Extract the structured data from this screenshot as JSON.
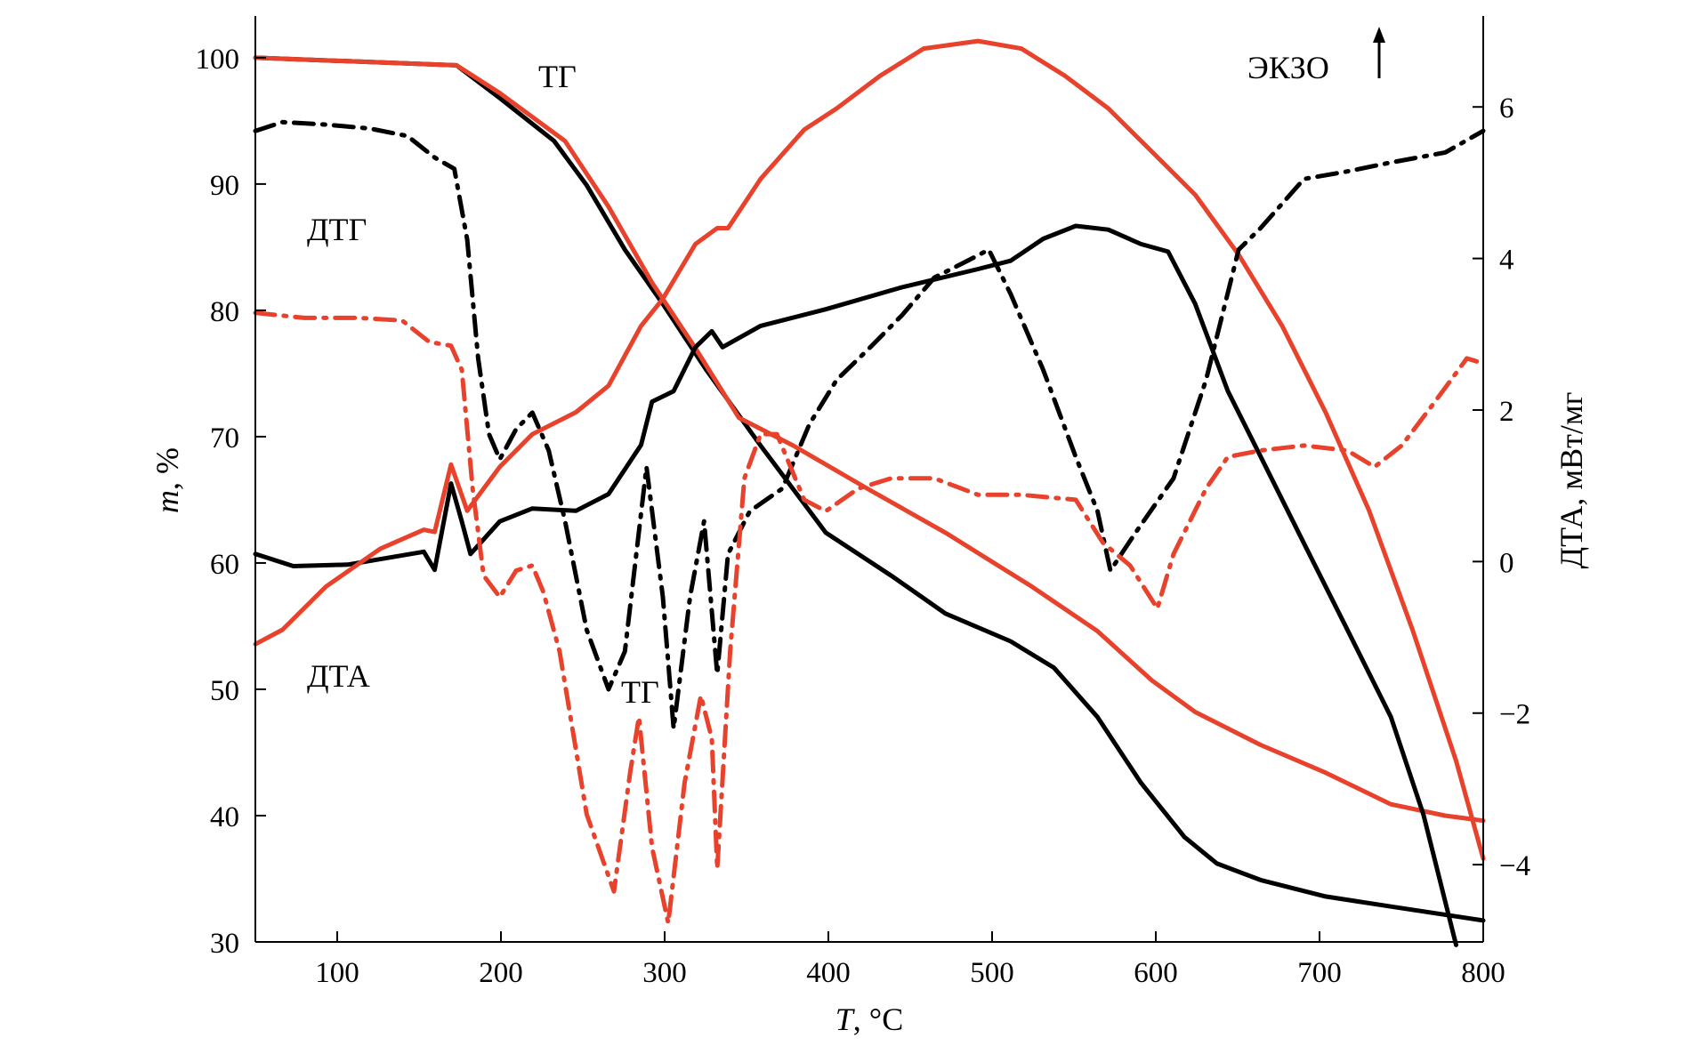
{
  "chart_data": {
    "type": "line",
    "title": "",
    "xlabel": "T, °C",
    "xlabel_var": "T",
    "xlabel_unit": ", °C",
    "ylabel": "m, %",
    "ylabel_var": "m",
    "ylabel_unit": ", %",
    "y2label": "ДТА, мВт/мг",
    "xlim": [
      50,
      800
    ],
    "ylim": [
      30,
      103.3
    ],
    "y2lim": [
      -5.02,
      7.2
    ],
    "grid": false,
    "xticks": [
      "100",
      "200",
      "300",
      "400",
      "500",
      "600",
      "700",
      "800"
    ],
    "xtick_values": [
      100,
      200,
      300,
      400,
      500,
      600,
      700,
      800
    ],
    "yticks": [
      "30",
      "40",
      "50",
      "60",
      "70",
      "80",
      "90",
      "100"
    ],
    "ytick_values": [
      30,
      40,
      50,
      60,
      70,
      80,
      90,
      100
    ],
    "y2ticks": [
      "−4",
      "−2",
      "0",
      "2",
      "4",
      "6"
    ],
    "y2tick_values": [
      -4,
      -2,
      0,
      2,
      4,
      6
    ],
    "annotations": [
      {
        "text": "ТГ",
        "near": "top-center"
      },
      {
        "text": "ДТГ",
        "near": "upper-left"
      },
      {
        "text": "ДТА",
        "near": "lower-left"
      },
      {
        "text": "ТГ",
        "near": "lower-center"
      },
      {
        "text": "ЭКЗО",
        "near": "top-right",
        "arrow": "up"
      }
    ],
    "series": [
      {
        "name": "ТГ (black)",
        "axis": "left",
        "color": "#000000",
        "style": "solid",
        "points": [
          [
            50,
            100
          ],
          [
            172.8,
            99.4
          ],
          [
            199.3,
            96.8
          ],
          [
            232.5,
            93.4
          ],
          [
            252.4,
            89.9
          ],
          [
            275.7,
            84.8
          ],
          [
            298.9,
            80.5
          ],
          [
            325.4,
            75.3
          ],
          [
            358.6,
            69.3
          ],
          [
            398.4,
            62.4
          ],
          [
            438.3,
            59.0
          ],
          [
            471.5,
            56.0
          ],
          [
            511.3,
            53.8
          ],
          [
            537.8,
            51.7
          ],
          [
            564.4,
            47.8
          ],
          [
            590.9,
            42.6
          ],
          [
            617.5,
            38.3
          ],
          [
            637.4,
            36.2
          ],
          [
            664,
            34.9
          ],
          [
            703.7,
            33.6
          ],
          [
            743.6,
            32.8
          ],
          [
            800,
            31.7
          ]
        ]
      },
      {
        "name": "ТГ (red)",
        "axis": "left",
        "color": "#e8412c",
        "style": "solid",
        "points": [
          [
            50,
            100
          ],
          [
            172.8,
            99.4
          ],
          [
            199.3,
            97.2
          ],
          [
            239.2,
            93.4
          ],
          [
            265.7,
            88.2
          ],
          [
            292.3,
            82.2
          ],
          [
            318.8,
            77.0
          ],
          [
            345.3,
            71.5
          ],
          [
            378.5,
            69.3
          ],
          [
            425,
            65.8
          ],
          [
            471.5,
            62.4
          ],
          [
            524.6,
            58.1
          ],
          [
            564.4,
            54.6
          ],
          [
            597.6,
            50.7
          ],
          [
            624.1,
            48.2
          ],
          [
            664,
            45.6
          ],
          [
            703.7,
            43.4
          ],
          [
            743.6,
            40.9
          ],
          [
            776.7,
            40.0
          ],
          [
            800,
            39.6
          ]
        ]
      },
      {
        "name": "ДТА (black)",
        "axis": "right",
        "color": "#000000",
        "style": "solid",
        "points": [
          [
            50,
            0.1
          ],
          [
            73.2,
            -0.06
          ],
          [
            106.4,
            -0.04
          ],
          [
            152.9,
            0.13
          ],
          [
            159.5,
            -0.11
          ],
          [
            169.5,
            1.03
          ],
          [
            176.1,
            0.53
          ],
          [
            181.4,
            0.1
          ],
          [
            199.3,
            0.53
          ],
          [
            219.2,
            0.7
          ],
          [
            245.8,
            0.67
          ],
          [
            265.7,
            0.89
          ],
          [
            285.6,
            1.54
          ],
          [
            292.3,
            2.11
          ],
          [
            305.5,
            2.25
          ],
          [
            318.8,
            2.83
          ],
          [
            328.8,
            3.04
          ],
          [
            335.4,
            2.83
          ],
          [
            358.6,
            3.11
          ],
          [
            398.4,
            3.33
          ],
          [
            444.9,
            3.62
          ],
          [
            491.4,
            3.86
          ],
          [
            511.3,
            3.97
          ],
          [
            531.2,
            4.26
          ],
          [
            551.1,
            4.43
          ],
          [
            571,
            4.38
          ],
          [
            590.9,
            4.19
          ],
          [
            607.5,
            4.09
          ],
          [
            624.1,
            3.4
          ],
          [
            644,
            2.25
          ],
          [
            663.9,
            1.39
          ],
          [
            690.5,
            0.24
          ],
          [
            717,
            -0.9
          ],
          [
            743.6,
            -2.05
          ],
          [
            763.5,
            -3.34
          ],
          [
            783.4,
            -5.06
          ]
        ]
      },
      {
        "name": "ДТА (red)",
        "axis": "right",
        "color": "#e8412c",
        "style": "solid",
        "points": [
          [
            50,
            -1.09
          ],
          [
            66.6,
            -0.9
          ],
          [
            93.1,
            -0.33
          ],
          [
            126.3,
            0.17
          ],
          [
            152.9,
            0.42
          ],
          [
            159.5,
            0.39
          ],
          [
            169.5,
            1.28
          ],
          [
            179.4,
            0.67
          ],
          [
            199.3,
            1.25
          ],
          [
            219.2,
            1.68
          ],
          [
            245.8,
            1.97
          ],
          [
            265.7,
            2.32
          ],
          [
            285.6,
            3.11
          ],
          [
            298.9,
            3.47
          ],
          [
            318.8,
            4.19
          ],
          [
            332.1,
            4.4
          ],
          [
            338.7,
            4.4
          ],
          [
            358.6,
            5.05
          ],
          [
            385.2,
            5.7
          ],
          [
            405.1,
            5.98
          ],
          [
            431.6,
            6.41
          ],
          [
            458.2,
            6.77
          ],
          [
            491.4,
            6.87
          ],
          [
            517.9,
            6.77
          ],
          [
            544.5,
            6.41
          ],
          [
            571,
            5.98
          ],
          [
            597.6,
            5.41
          ],
          [
            624.1,
            4.84
          ],
          [
            650.6,
            4.05
          ],
          [
            677.2,
            3.11
          ],
          [
            703.7,
            1.97
          ],
          [
            730.3,
            0.67
          ],
          [
            756.8,
            -0.9
          ],
          [
            783.4,
            -2.63
          ],
          [
            800,
            -3.92
          ]
        ]
      },
      {
        "name": "ДТГ (black)",
        "axis": "left",
        "color": "#000000",
        "style": "dashdot",
        "points": [
          [
            50,
            94.2
          ],
          [
            66.6,
            94.9
          ],
          [
            93.1,
            94.7
          ],
          [
            119.6,
            94.4
          ],
          [
            142.9,
            93.8
          ],
          [
            159.5,
            92.1
          ],
          [
            171.5,
            91.2
          ],
          [
            179.4,
            85.6
          ],
          [
            186.1,
            76.2
          ],
          [
            192.7,
            70.2
          ],
          [
            199.3,
            68.2
          ],
          [
            209.3,
            70.6
          ],
          [
            219.2,
            71.9
          ],
          [
            229.2,
            68.9
          ],
          [
            239.2,
            63.3
          ],
          [
            252.4,
            54.7
          ],
          [
            265.7,
            50.0
          ],
          [
            275.7,
            53.0
          ],
          [
            288.9,
            67.6
          ],
          [
            298.9,
            57.3
          ],
          [
            305.5,
            46.9
          ],
          [
            315.5,
            57.3
          ],
          [
            324.1,
            63.3
          ],
          [
            332.1,
            51.2
          ],
          [
            338.7,
            60.7
          ],
          [
            352,
            64.1
          ],
          [
            371.9,
            65.9
          ],
          [
            388.5,
            71.0
          ],
          [
            405.1,
            74.5
          ],
          [
            425,
            77.0
          ],
          [
            444.9,
            79.6
          ],
          [
            464.8,
            82.6
          ],
          [
            484.7,
            83.9
          ],
          [
            498,
            84.8
          ],
          [
            511.3,
            81.3
          ],
          [
            531.2,
            75.3
          ],
          [
            551.1,
            68.4
          ],
          [
            564.4,
            64.1
          ],
          [
            572.3,
            59.4
          ],
          [
            587.6,
            62.4
          ],
          [
            610.8,
            66.7
          ],
          [
            630.7,
            74.5
          ],
          [
            650.6,
            84.8
          ],
          [
            663.9,
            86.5
          ],
          [
            690.5,
            90.4
          ],
          [
            717,
            91.0
          ],
          [
            743.6,
            91.7
          ],
          [
            776.8,
            92.5
          ],
          [
            800,
            94.2
          ]
        ]
      },
      {
        "name": "ДТГ (red)",
        "axis": "left",
        "color": "#e8412c",
        "style": "dashdot",
        "points": [
          [
            50,
            79.8
          ],
          [
            79.9,
            79.4
          ],
          [
            113.1,
            79.4
          ],
          [
            139.6,
            79.2
          ],
          [
            156.2,
            77.5
          ],
          [
            169.5,
            77.2
          ],
          [
            176.1,
            75.3
          ],
          [
            182.7,
            65.9
          ],
          [
            189.4,
            59.0
          ],
          [
            199.3,
            57.3
          ],
          [
            209.3,
            59.4
          ],
          [
            219.2,
            59.8
          ],
          [
            225.9,
            57.7
          ],
          [
            235.8,
            53.0
          ],
          [
            252.4,
            40.1
          ],
          [
            269,
            34.0
          ],
          [
            279,
            43.5
          ],
          [
            284.3,
            47.8
          ],
          [
            292.3,
            37.5
          ],
          [
            302.2,
            31.5
          ],
          [
            312.2,
            42.6
          ],
          [
            322.1,
            49.5
          ],
          [
            328.8,
            46.1
          ],
          [
            332.1,
            35.8
          ],
          [
            340,
            53.0
          ],
          [
            348.7,
            66.7
          ],
          [
            358.6,
            70.2
          ],
          [
            368.6,
            70.2
          ],
          [
            385.2,
            65.0
          ],
          [
            398.4,
            64.1
          ],
          [
            418.3,
            65.9
          ],
          [
            438.3,
            66.7
          ],
          [
            464.8,
            66.7
          ],
          [
            491.4,
            65.4
          ],
          [
            517.9,
            65.4
          ],
          [
            551.1,
            65.0
          ],
          [
            567.7,
            61.6
          ],
          [
            584.3,
            59.8
          ],
          [
            600.9,
            56.4
          ],
          [
            610.8,
            60.7
          ],
          [
            630.7,
            65.9
          ],
          [
            644,
            68.4
          ],
          [
            663.9,
            68.9
          ],
          [
            690.5,
            69.3
          ],
          [
            717,
            68.9
          ],
          [
            733.6,
            67.6
          ],
          [
            750.2,
            69.3
          ],
          [
            770.1,
            72.7
          ],
          [
            790,
            76.2
          ],
          [
            800,
            75.8
          ]
        ]
      }
    ]
  }
}
